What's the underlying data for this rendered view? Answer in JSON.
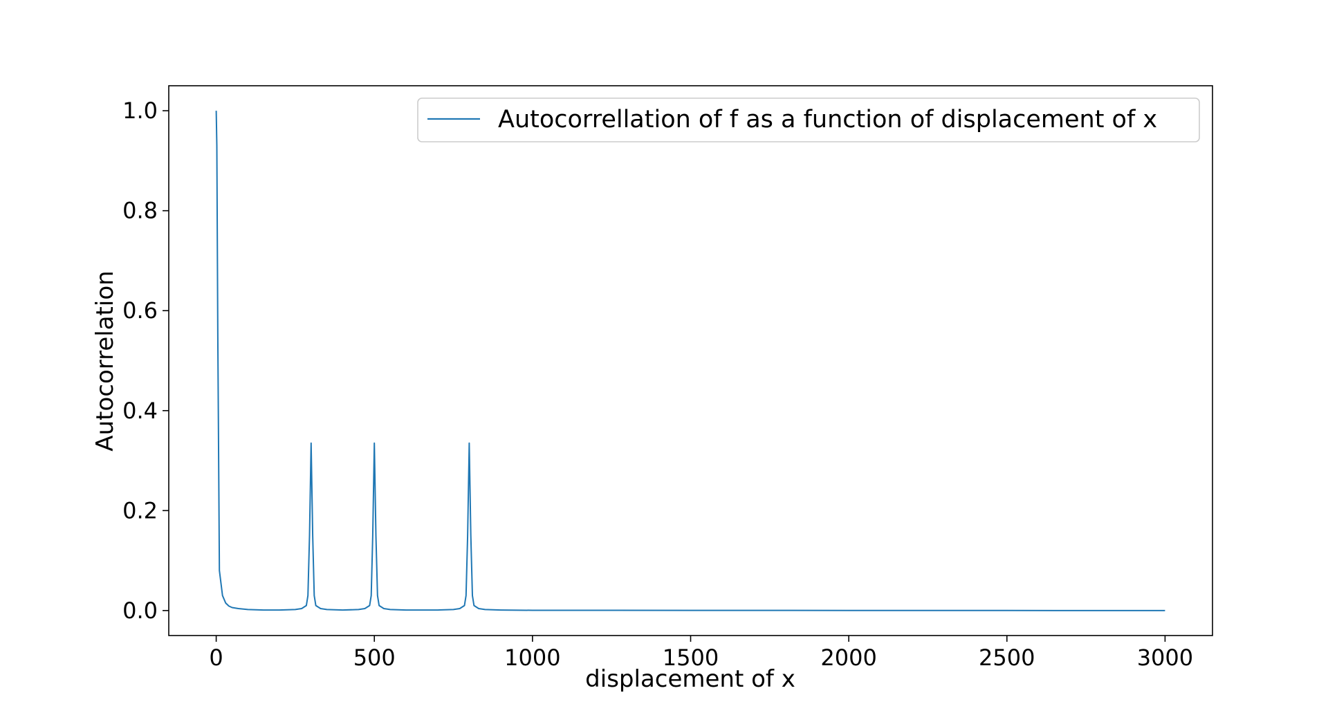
{
  "chart_data": {
    "type": "line",
    "title": "",
    "xlabel": "displacement of x",
    "ylabel": "Autocorrelation",
    "xlim": [
      -150,
      3150
    ],
    "ylim": [
      -0.05,
      1.05
    ],
    "xticks": [
      0,
      500,
      1000,
      1500,
      2000,
      2500,
      3000
    ],
    "xtick_labels": [
      "0",
      "500",
      "1000",
      "1500",
      "2000",
      "2500",
      "3000"
    ],
    "yticks": [
      0.0,
      0.2,
      0.4,
      0.6,
      0.8,
      1.0
    ],
    "ytick_labels": [
      "0.0",
      "0.2",
      "0.4",
      "0.6",
      "0.8",
      "1.0"
    ],
    "grid": false,
    "legend_position": "top-right",
    "series": [
      {
        "name": "Autocorrellation of f as a function of displacement of x",
        "color": "#1f77b4",
        "x": [
          0,
          2,
          5,
          10,
          20,
          30,
          40,
          50,
          70,
          100,
          150,
          200,
          250,
          270,
          285,
          290,
          295,
          300,
          305,
          310,
          315,
          330,
          350,
          400,
          450,
          470,
          485,
          490,
          495,
          500,
          505,
          510,
          515,
          530,
          550,
          600,
          700,
          750,
          770,
          785,
          790,
          795,
          800,
          805,
          810,
          815,
          830,
          850,
          900,
          1000,
          1500,
          2000,
          2500,
          3000
        ],
        "y": [
          1.0,
          0.93,
          0.55,
          0.08,
          0.03,
          0.015,
          0.009,
          0.006,
          0.004,
          0.002,
          0.001,
          0.001,
          0.002,
          0.004,
          0.01,
          0.03,
          0.15,
          0.335,
          0.15,
          0.03,
          0.01,
          0.004,
          0.002,
          0.001,
          0.002,
          0.004,
          0.01,
          0.03,
          0.15,
          0.335,
          0.15,
          0.03,
          0.01,
          0.004,
          0.002,
          0.001,
          0.001,
          0.002,
          0.004,
          0.01,
          0.03,
          0.15,
          0.335,
          0.15,
          0.03,
          0.01,
          0.004,
          0.002,
          0.001,
          0.0005,
          0.0003,
          0.0002,
          0.0001,
          0.0
        ]
      }
    ]
  }
}
